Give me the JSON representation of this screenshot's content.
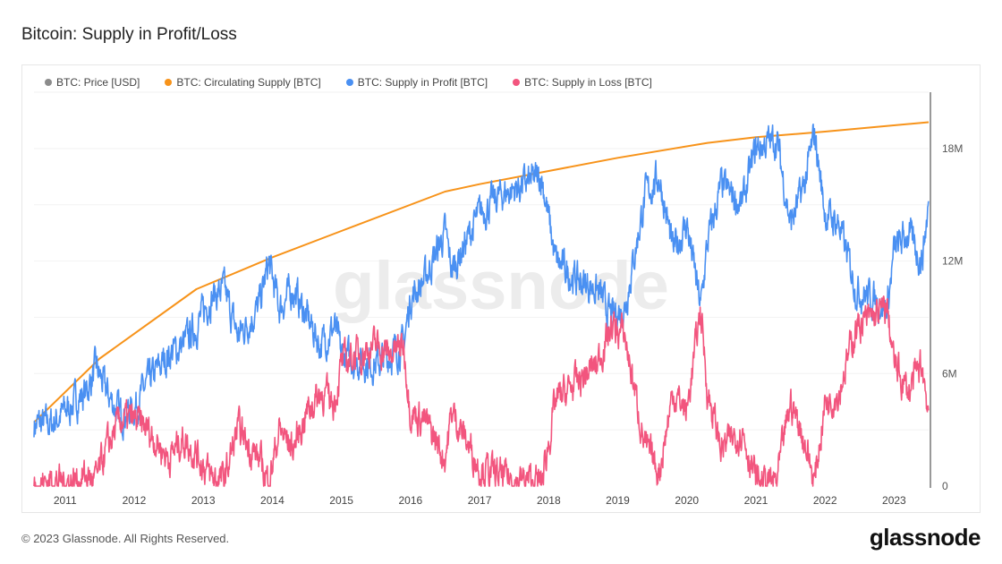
{
  "title": "Bitcoin: Supply in Profit/Loss",
  "footer": "© 2023 Glassnode. All Rights Reserved.",
  "logo": "glassnode",
  "watermark": "glassnode",
  "chart_data": {
    "type": "line",
    "title": "Bitcoin: Supply in Profit/Loss",
    "legend_position": "top-left",
    "legend": [
      {
        "name": "BTC: Price [USD]",
        "color": "#8c8c8c"
      },
      {
        "name": "BTC: Circulating Supply [BTC]",
        "color": "#f7931a"
      },
      {
        "name": "BTC: Supply in Profit [BTC]",
        "color": "#4a90f2"
      },
      {
        "name": "BTC: Supply in Loss [BTC]",
        "color": "#f2557e"
      }
    ],
    "x_ticks": [
      "2011",
      "2012",
      "2013",
      "2014",
      "2015",
      "2016",
      "2017",
      "2018",
      "2019",
      "2020",
      "2021",
      "2022",
      "2023"
    ],
    "y_ticks": [
      "0",
      "6M",
      "12M",
      "18M"
    ],
    "xlim": [
      2010.55,
      2023.5
    ],
    "ylim": [
      0,
      21
    ],
    "y_unit": "M BTC",
    "series": [
      {
        "name": "BTC: Circulating Supply [BTC]",
        "color": "#f7931a",
        "x": [
          2010.55,
          2011.5,
          2012.9,
          2014.0,
          2015.0,
          2016.5,
          2017.0,
          2018.0,
          2019.0,
          2020.3,
          2021.0,
          2022.0,
          2023.5
        ],
        "y": [
          3.4,
          6.8,
          10.5,
          12.2,
          13.6,
          15.7,
          16.1,
          16.8,
          17.5,
          18.3,
          18.6,
          18.9,
          19.4
        ]
      },
      {
        "name": "BTC: Supply in Profit [BTC]",
        "color": "#4a90f2",
        "x": [
          2010.55,
          2010.8,
          2011.0,
          2011.3,
          2011.45,
          2011.6,
          2011.8,
          2012.0,
          2012.2,
          2012.5,
          2012.7,
          2012.9,
          2013.1,
          2013.3,
          2013.5,
          2013.8,
          2013.95,
          2014.1,
          2014.3,
          2014.5,
          2014.7,
          2014.9,
          2015.0,
          2015.2,
          2015.5,
          2015.7,
          2015.9,
          2016.0,
          2016.2,
          2016.5,
          2016.6,
          2016.8,
          2017.0,
          2017.3,
          2017.6,
          2017.9,
          2018.1,
          2018.4,
          2018.7,
          2018.9,
          2019.1,
          2019.4,
          2019.6,
          2019.8,
          2020.0,
          2020.2,
          2020.3,
          2020.5,
          2020.8,
          2021.0,
          2021.3,
          2021.5,
          2021.7,
          2021.85,
          2022.0,
          2022.2,
          2022.45,
          2022.7,
          2022.9,
          2023.0,
          2023.2,
          2023.4,
          2023.5
        ],
        "y": [
          3.3,
          3.3,
          4.0,
          5.0,
          6.3,
          5.0,
          3.8,
          4.2,
          5.5,
          7.0,
          7.5,
          8.5,
          10,
          10.5,
          8.0,
          9.5,
          11.9,
          9.5,
          10.5,
          9.0,
          7.5,
          8.5,
          7.0,
          6.7,
          6.5,
          7.0,
          7.5,
          10,
          11,
          13.5,
          11.5,
          13,
          14.5,
          15.5,
          16,
          16.5,
          12,
          11,
          10.5,
          9.0,
          9.5,
          15.5,
          16.5,
          12.5,
          14,
          9.5,
          13,
          16,
          15,
          18,
          18.5,
          14,
          16,
          18.8,
          14.5,
          14,
          10.5,
          10,
          9.5,
          12.5,
          13.5,
          12,
          15
        ]
      },
      {
        "name": "BTC: Supply in Loss [BTC]",
        "color": "#f2557e",
        "x": [
          2010.55,
          2010.8,
          2011.0,
          2011.3,
          2011.45,
          2011.6,
          2011.8,
          2012.0,
          2012.2,
          2012.5,
          2012.7,
          2012.9,
          2013.1,
          2013.3,
          2013.5,
          2013.8,
          2013.95,
          2014.1,
          2014.3,
          2014.5,
          2014.7,
          2014.9,
          2015.0,
          2015.2,
          2015.5,
          2015.7,
          2015.9,
          2016.0,
          2016.2,
          2016.5,
          2016.6,
          2016.8,
          2017.0,
          2017.3,
          2017.6,
          2017.9,
          2018.1,
          2018.4,
          2018.7,
          2018.9,
          2019.1,
          2019.4,
          2019.6,
          2019.8,
          2020.0,
          2020.2,
          2020.3,
          2020.5,
          2020.8,
          2021.0,
          2021.3,
          2021.5,
          2021.7,
          2021.85,
          2022.0,
          2022.2,
          2022.45,
          2022.7,
          2022.9,
          2023.0,
          2023.2,
          2023.4,
          2023.5
        ],
        "y": [
          0,
          0.3,
          0.2,
          0.5,
          0.3,
          2.0,
          3.5,
          3.5,
          3.0,
          1.5,
          2.5,
          1.8,
          0.5,
          0.3,
          3.0,
          1.5,
          0.2,
          3.0,
          2.0,
          4.0,
          5.0,
          4.5,
          6.5,
          7.0,
          7.5,
          7.0,
          7.5,
          4.0,
          3.5,
          1.5,
          4.0,
          2.5,
          1.0,
          0.5,
          0.3,
          0.2,
          4.5,
          5.5,
          6.5,
          8.5,
          8.0,
          2.0,
          0.8,
          5.0,
          4.0,
          9.5,
          5.0,
          2.0,
          3.0,
          0.3,
          0.2,
          4.5,
          2.5,
          0.2,
          4.5,
          5.0,
          8.5,
          9.0,
          9.5,
          6.5,
          5.0,
          6.5,
          4.0
        ]
      }
    ]
  }
}
